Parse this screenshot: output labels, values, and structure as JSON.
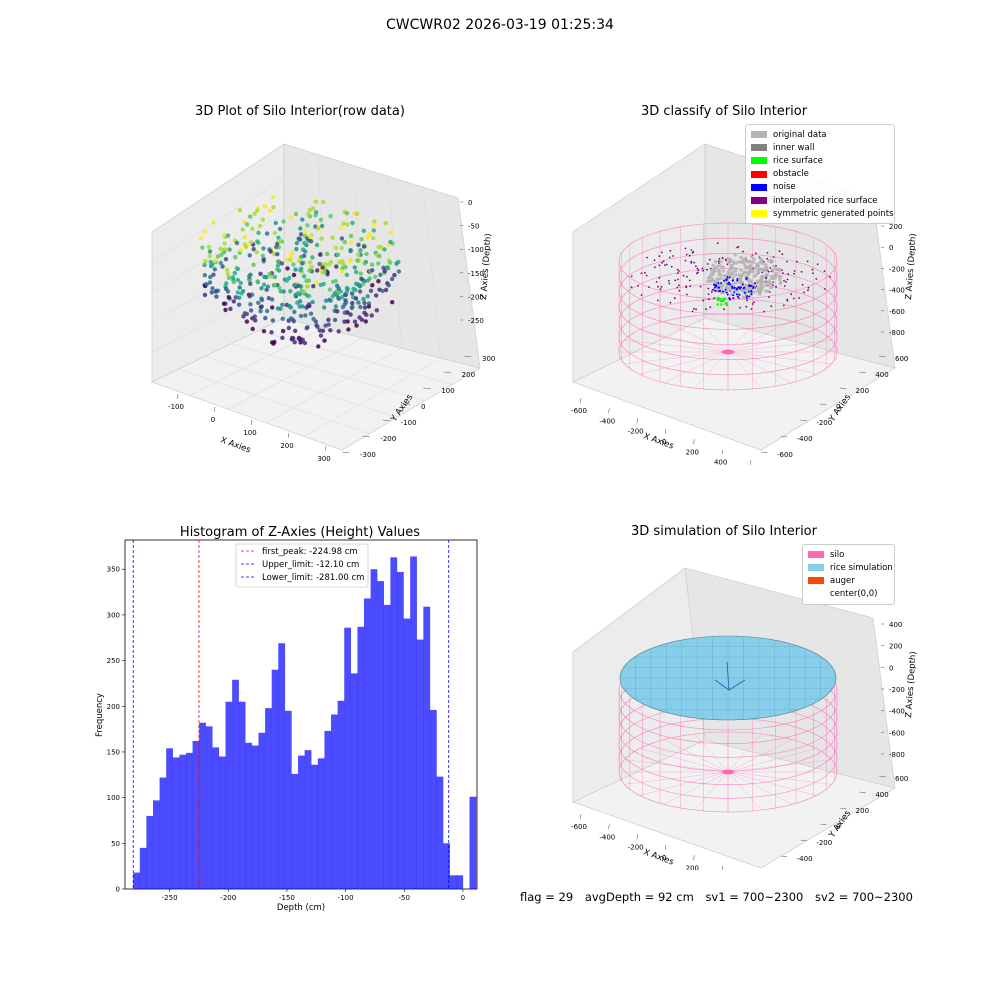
{
  "suptitle": "CWCWR02 2026-03-19 01:25:34",
  "panels": {
    "raw": {
      "title": "3D Plot of Silo Interior(row data)",
      "xlabel": "X Axies",
      "ylabel": "Y Axies",
      "zlabel": "Z Axies (Depth)",
      "xticks": [
        "-100",
        "0",
        "100",
        "200",
        "300"
      ],
      "yticks": [
        "300",
        "200",
        "100",
        "0",
        "-100",
        "-200",
        "-300"
      ],
      "zticks": [
        "0",
        "-50",
        "-100",
        "-150",
        "-200",
        "-250"
      ]
    },
    "classify": {
      "title": "3D classify of Silo Interior",
      "xlabel": "X Axies",
      "ylabel": "Y Axies",
      "zlabel": "Z Axies (Depth)",
      "xticks": [
        "-600",
        "-400",
        "-200",
        "0",
        "200",
        "400",
        "600"
      ],
      "yticks": [
        "600",
        "400",
        "200",
        "0",
        "-200",
        "-400",
        "-600"
      ],
      "zticks": [
        "200",
        "0",
        "-200",
        "-400",
        "-600",
        "-800"
      ],
      "legend": [
        {
          "label": "original data",
          "color": "#b3b3b3"
        },
        {
          "label": "inner wall",
          "color": "#808080"
        },
        {
          "label": "rice surface",
          "color": "#00ff00"
        },
        {
          "label": "obstacle",
          "color": "#ff0000"
        },
        {
          "label": "noise",
          "color": "#0000ff"
        },
        {
          "label": "interpolated rice surface",
          "color": "#800080"
        },
        {
          "label": "symmetric generated points",
          "color": "#ffff00"
        }
      ]
    },
    "sim": {
      "title": "3D simulation of Silo Interior",
      "xlabel": "X Axies",
      "ylabel": "Y Axies",
      "zlabel": "Z Axies (Depth)",
      "xticks": [
        "-600",
        "-400",
        "-200",
        "0",
        "200",
        "400",
        "600"
      ],
      "yticks": [
        "600",
        "400",
        "200",
        "0",
        "-200",
        "-400",
        "-600"
      ],
      "zticks": [
        "400",
        "200",
        "0",
        "-200",
        "-400",
        "-600",
        "-800"
      ],
      "legend": [
        {
          "label": "silo",
          "color": "#ff69b4"
        },
        {
          "label": "rice simulation",
          "color": "#87ceeb"
        },
        {
          "label": "auger",
          "color": "#ff4500"
        },
        {
          "label": "center(0,0)",
          "color": ""
        }
      ]
    }
  },
  "chart_data": {
    "type": "bar",
    "title": "Histogram of Z-Axies (Height) Values",
    "xlabel": "Depth (cm)",
    "ylabel": "Frequency",
    "xlim": [
      -288,
      12
    ],
    "ylim": [
      0,
      382
    ],
    "xticks": [
      -250,
      -200,
      -150,
      -100,
      -50,
      0
    ],
    "yticks": [
      0,
      50,
      100,
      150,
      200,
      250,
      300,
      350
    ],
    "bar_color": "#0000ff",
    "bin_start": -281,
    "bin_width": 5.62,
    "values": [
      18,
      45,
      80,
      97,
      122,
      154,
      144,
      147,
      149,
      162,
      182,
      178,
      155,
      145,
      205,
      229,
      205,
      160,
      157,
      171,
      198,
      240,
      269,
      195,
      126,
      146,
      152,
      136,
      143,
      173,
      191,
      206,
      286,
      236,
      287,
      318,
      350,
      337,
      311,
      363,
      347,
      296,
      364,
      273,
      309,
      196,
      123,
      50,
      15,
      15,
      0,
      101
    ],
    "vlines": [
      {
        "value": -224.98,
        "label": "first_peak: -224.98 cm",
        "color": "#ff0000"
      },
      {
        "value": -12.1,
        "label": "Upper_limit: -12.10 cm",
        "color": "#0000ff"
      },
      {
        "value": -281.0,
        "label": "Lower_limit: -281.00 cm",
        "color": "#0000ff"
      }
    ]
  },
  "footer": {
    "flag": "flag = 29",
    "avg": "avgDepth = 92 cm",
    "sv1": "sv1 = 700~2300",
    "sv2": "sv2 = 700~2300"
  }
}
